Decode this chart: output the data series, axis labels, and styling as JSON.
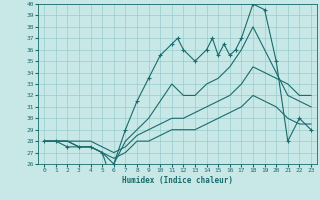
{
  "background_color": "#c8e8e8",
  "grid_color": "#99cccc",
  "line_color": "#1a6b6b",
  "xlabel": "Humidex (Indice chaleur)",
  "xlim": [
    -0.5,
    23.5
  ],
  "ylim": [
    26,
    40
  ],
  "yticks": [
    26,
    27,
    28,
    29,
    30,
    31,
    32,
    33,
    34,
    35,
    36,
    37,
    38,
    39,
    40
  ],
  "xticks": [
    0,
    1,
    2,
    3,
    4,
    5,
    6,
    7,
    8,
    9,
    10,
    11,
    12,
    13,
    14,
    15,
    16,
    17,
    18,
    19,
    20,
    21,
    22,
    23
  ],
  "series": [
    {
      "x": [
        0,
        1,
        2,
        3,
        4,
        5,
        5.5,
        6,
        7,
        8,
        9,
        10,
        11,
        11.5,
        12,
        13,
        14,
        14.5,
        15,
        15.5,
        16,
        16.5,
        17,
        18,
        19,
        20,
        21,
        22,
        23
      ],
      "y": [
        28,
        28,
        27.5,
        27.5,
        27.5,
        27,
        25.5,
        26,
        29,
        31.5,
        33.5,
        35.5,
        36.5,
        37,
        36,
        35,
        36,
        37,
        35.5,
        36.5,
        35.5,
        36,
        37,
        40,
        39.5,
        35,
        28,
        30,
        29
      ],
      "marker": "+"
    },
    {
      "x": [
        0,
        1,
        2,
        3,
        4,
        5,
        6,
        7,
        8,
        9,
        10,
        11,
        12,
        13,
        14,
        15,
        16,
        17,
        18,
        19,
        20,
        21,
        22,
        23
      ],
      "y": [
        28,
        28,
        28,
        27.5,
        27.5,
        27,
        26,
        28,
        29,
        30,
        31.5,
        33,
        32,
        32,
        33,
        33.5,
        34.5,
        36,
        38,
        36,
        34,
        32,
        31.5,
        31
      ],
      "marker": null
    },
    {
      "x": [
        0,
        1,
        2,
        3,
        4,
        5,
        6,
        7,
        8,
        9,
        10,
        11,
        12,
        13,
        14,
        15,
        16,
        17,
        18,
        19,
        20,
        21,
        22,
        23
      ],
      "y": [
        28,
        28,
        28,
        28,
        28,
        27.5,
        27,
        27.5,
        28.5,
        29,
        29.5,
        30,
        30,
        30.5,
        31,
        31.5,
        32,
        33,
        34.5,
        34,
        33.5,
        33,
        32,
        32
      ],
      "marker": null
    },
    {
      "x": [
        0,
        1,
        2,
        3,
        4,
        5,
        6,
        7,
        8,
        9,
        10,
        11,
        12,
        13,
        14,
        15,
        16,
        17,
        18,
        19,
        20,
        21,
        22,
        23
      ],
      "y": [
        28,
        28,
        28,
        27.5,
        27.5,
        27,
        26.5,
        27,
        28,
        28,
        28.5,
        29,
        29,
        29,
        29.5,
        30,
        30.5,
        31,
        32,
        31.5,
        31,
        30,
        29.5,
        29.5
      ],
      "marker": null
    }
  ]
}
